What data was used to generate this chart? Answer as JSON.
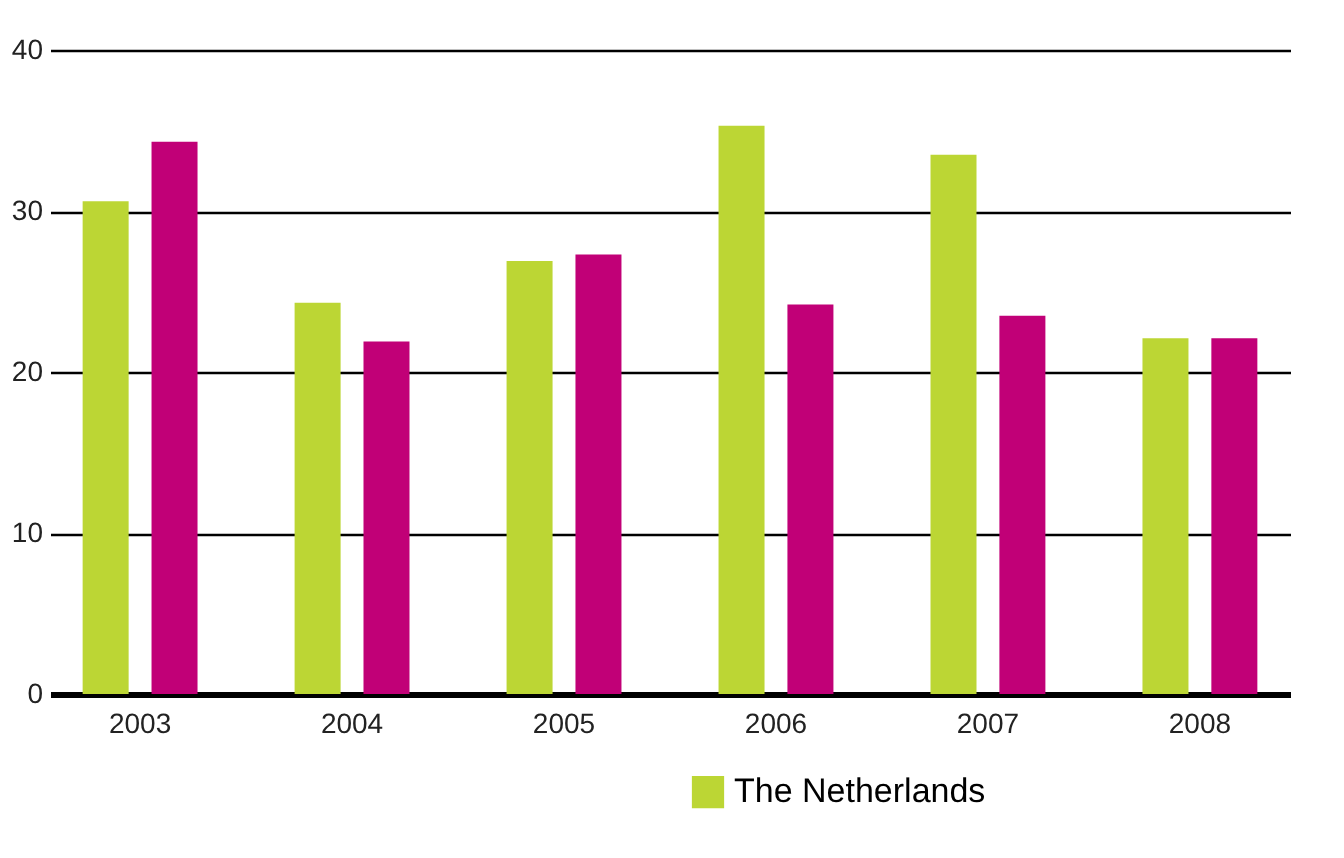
{
  "chart_data": {
    "type": "bar",
    "categories": [
      "2003",
      "2004",
      "2005",
      "2006",
      "2007",
      "2008"
    ],
    "series": [
      {
        "name": "The Netherlands",
        "color": "#bcd634",
        "values": [
          30.6,
          24.3,
          26.9,
          35.3,
          33.5,
          22.1
        ]
      },
      {
        "color": "#c10077",
        "values": [
          34.3,
          21.9,
          27.3,
          24.2,
          23.5,
          22.1
        ]
      }
    ],
    "ylim": [
      0,
      40
    ],
    "yticks": [
      0,
      10,
      20,
      30,
      40
    ],
    "grid": "y",
    "legend": "bottom right"
  }
}
